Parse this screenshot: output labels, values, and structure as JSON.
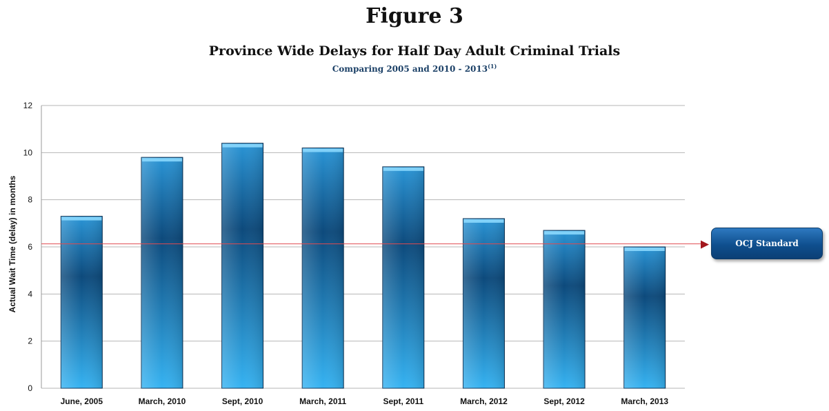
{
  "figure_label": "Figure 3",
  "chart_data": {
    "type": "bar",
    "title": "Province Wide Delays for Half Day Adult Criminal Trials",
    "subtitle": "Comparing 2005 and 2010 - 2013",
    "subtitle_note": "(1)",
    "xlabel": "",
    "ylabel": "Actual Wait Time (delay) in months",
    "categories": [
      "June, 2005",
      "March, 2010",
      "Sept, 2010",
      "March, 2011",
      "Sept, 2011",
      "March, 2012",
      "Sept, 2012",
      "March, 2013"
    ],
    "values": [
      7.3,
      9.8,
      10.4,
      10.2,
      9.4,
      7.2,
      6.7,
      6.0
    ],
    "ylim": [
      0,
      12
    ],
    "yticks": [
      0,
      2,
      4,
      6,
      8,
      10,
      12
    ],
    "grid": true,
    "reference_line": {
      "value": 6.1,
      "label": "OCJ Standard",
      "color": "#a3181e"
    },
    "colors": {
      "bar_light": "#3bb6f2",
      "bar_dark": "#0d4a7c",
      "bar_top": "#8fdcff"
    }
  }
}
